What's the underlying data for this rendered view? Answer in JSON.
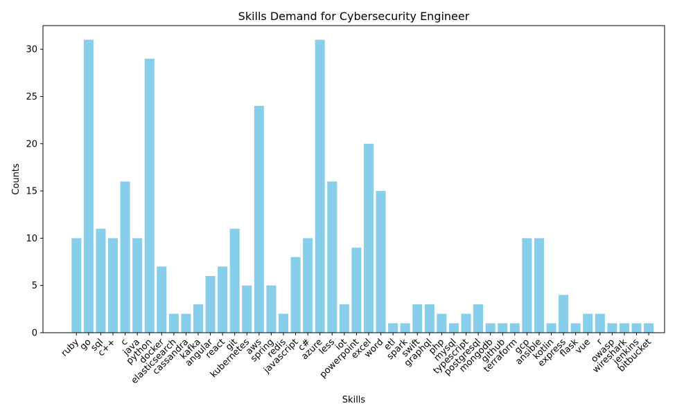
{
  "chart_data": {
    "type": "bar",
    "title": "Skills Demand for Cybersecurity Engineer",
    "xlabel": "Skills",
    "ylabel": "Counts",
    "ylim": [
      0,
      32.5
    ],
    "yticks": [
      0,
      5,
      10,
      15,
      20,
      25,
      30
    ],
    "bar_color": "#87ceeb",
    "grid": false,
    "categories": [
      "ruby",
      "go",
      "sql",
      "c++",
      "c",
      "java",
      "python",
      "docker",
      "elasticsearch",
      "cassandra",
      "kafka",
      "angular",
      "react",
      "git",
      "kubernetes",
      "aws",
      "spring",
      "redis",
      "javascript",
      "c#",
      "azure",
      "less",
      "iot",
      "powerpoint",
      "excel",
      "word",
      "etl",
      "spark",
      "swift",
      "graphql",
      "php",
      "mysql",
      "typescript",
      "postgresql",
      "mongodb",
      "github",
      "terraform",
      "gcp",
      "ansible",
      "kotlin",
      "express",
      "flask",
      "vue",
      "r",
      "owasp",
      "wireshark",
      "jenkins",
      "bitbucket"
    ],
    "values": [
      10,
      31,
      11,
      10,
      16,
      10,
      29,
      7,
      2,
      2,
      3,
      6,
      7,
      11,
      5,
      24,
      5,
      2,
      8,
      10,
      31,
      16,
      3,
      9,
      20,
      15,
      1,
      1,
      3,
      3,
      2,
      1,
      2,
      3,
      1,
      1,
      1,
      10,
      10,
      1,
      4,
      1,
      2,
      2,
      1,
      1,
      1,
      1
    ]
  }
}
